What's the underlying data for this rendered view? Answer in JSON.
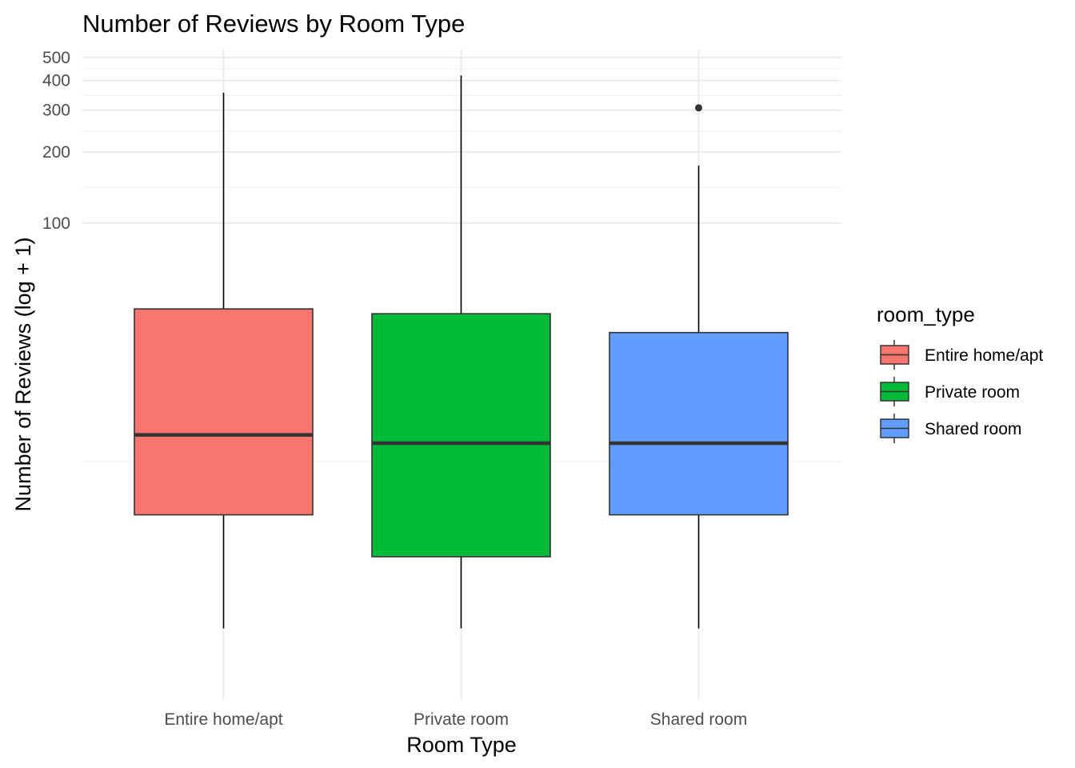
{
  "chart_data": {
    "type": "boxplot",
    "title": "Number of Reviews by Room Type",
    "xlabel": "Room Type",
    "ylabel": "Number of Reviews (log + 1)",
    "y_scale": "log(y + 1)",
    "y_ticks": [
      100,
      200,
      300,
      400,
      500
    ],
    "ylim": [
      0,
      540
    ],
    "grid": true,
    "legend": {
      "title": "room_type",
      "position": "right"
    },
    "categories": [
      "Entire home/apt",
      "Private room",
      "Shared room"
    ],
    "colors": [
      "#F8766D",
      "#00BA38",
      "#619CFF"
    ],
    "boxes": [
      {
        "category": "Entire home/apt",
        "min": 1,
        "q1": 5,
        "median": 12,
        "q3": 43,
        "max": 356,
        "outliers": []
      },
      {
        "category": "Private room",
        "min": 1,
        "q1": 3,
        "median": 11,
        "q3": 41,
        "max": 420,
        "outliers": []
      },
      {
        "category": "Shared room",
        "min": 1,
        "q1": 5,
        "median": 11,
        "q3": 34,
        "max": 175,
        "outliers": [
          307
        ]
      }
    ]
  }
}
